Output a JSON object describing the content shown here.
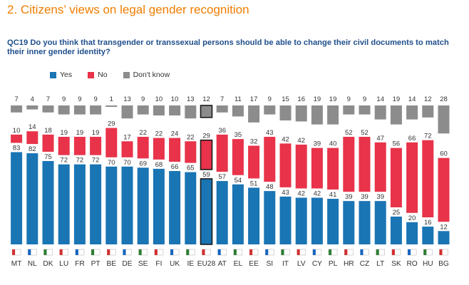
{
  "title": "2. Citizens’ views on legal gender recognition",
  "question": "QC19 Do you think that transgender or transsexual persons should be able to change their civil documents to match their inner gender identity?",
  "colors": {
    "yes": "#1a75b4",
    "no": "#e8334a",
    "dont_know": "#8c8c8c",
    "title": "#f07d00",
    "question": "#1f4e8c"
  },
  "chart_data": {
    "type": "bar",
    "stacked": true,
    "highlight": "EU28",
    "legend_position": "top-left",
    "categories": [
      "MT",
      "NL",
      "DK",
      "LU",
      "FR",
      "PT",
      "BE",
      "DE",
      "SE",
      "FI",
      "UK",
      "IE",
      "EU28",
      "AT",
      "EL",
      "EE",
      "SI",
      "IT",
      "LV",
      "CY",
      "PL",
      "HR",
      "CZ",
      "LT",
      "SK",
      "RO",
      "HU",
      "BG"
    ],
    "series": [
      {
        "name": "Yes",
        "values": [
          83,
          82,
          75,
          72,
          72,
          72,
          70,
          70,
          69,
          68,
          66,
          65,
          59,
          57,
          54,
          51,
          48,
          43,
          42,
          42,
          41,
          39,
          39,
          39,
          25,
          20,
          16,
          12
        ]
      },
      {
        "name": "No",
        "values": [
          10,
          14,
          18,
          19,
          19,
          19,
          29,
          17,
          22,
          22,
          24,
          22,
          29,
          36,
          35,
          32,
          43,
          42,
          42,
          39,
          40,
          52,
          52,
          47,
          56,
          66,
          72,
          60
        ]
      },
      {
        "name": "Don't know",
        "values": [
          7,
          4,
          7,
          9,
          9,
          9,
          1,
          13,
          9,
          10,
          10,
          13,
          12,
          7,
          11,
          17,
          9,
          15,
          16,
          19,
          19,
          9,
          9,
          14,
          19,
          14,
          12,
          28
        ]
      }
    ]
  }
}
